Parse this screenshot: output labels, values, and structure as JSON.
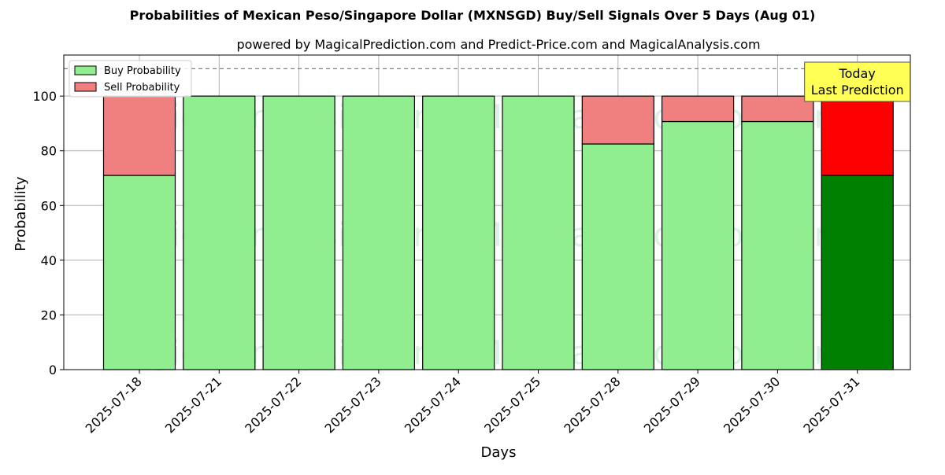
{
  "chart_data": {
    "type": "bar",
    "title": "Probabilities of Mexican Peso/Singapore Dollar (MXNSGD) Buy/Sell Signals Over 5 Days (Aug 01)",
    "subtitle": "powered by MagicalPrediction.com and Predict-Price.com and MagicalAnalysis.com",
    "xlabel": "Days",
    "ylabel": "Probability",
    "categories": [
      "2025-07-18",
      "2025-07-21",
      "2025-07-22",
      "2025-07-23",
      "2025-07-24",
      "2025-07-25",
      "2025-07-28",
      "2025-07-29",
      "2025-07-30",
      "2025-07-31"
    ],
    "series": [
      {
        "name": "Buy Probability",
        "values": [
          71,
          100,
          100,
          100,
          100,
          100,
          82.5,
          90.7,
          90.7,
          71
        ],
        "color": "#90ee90"
      },
      {
        "name": "Sell Probability",
        "values": [
          29,
          0,
          0,
          0,
          0,
          0,
          17.5,
          9.3,
          9.3,
          29
        ],
        "color": "#f08080"
      }
    ],
    "highlight": {
      "index": 9,
      "buy_color": "#008000",
      "sell_color": "#ff0000"
    },
    "stacked": true,
    "ylim": [
      0,
      115
    ],
    "yticks": [
      0,
      20,
      40,
      60,
      80,
      100
    ],
    "reference_line": {
      "y": 110,
      "style": "dashed"
    },
    "annotation": {
      "lines": [
        "Today",
        "Last Prediction"
      ],
      "background": "#ffff55"
    },
    "watermarks": [
      "MagicalAnalysis.com",
      "MagicalPrediction.com"
    ],
    "legend_position": "top-left",
    "grid": true
  }
}
